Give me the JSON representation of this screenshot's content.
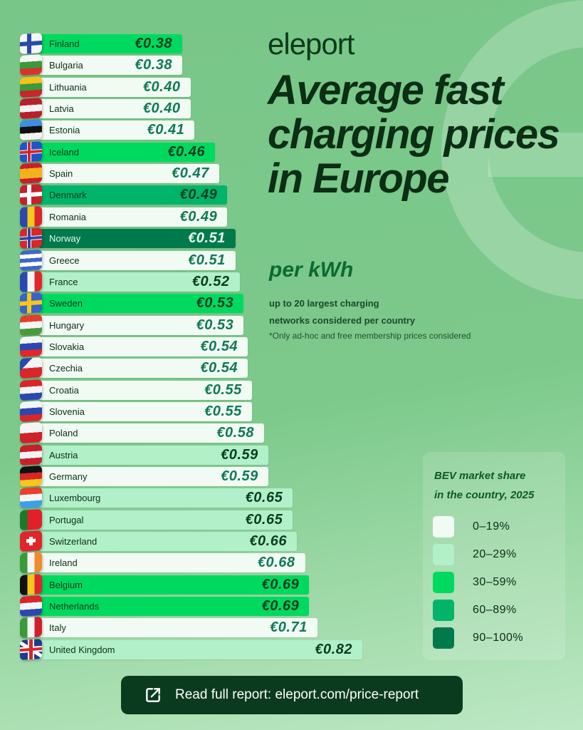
{
  "brand": {
    "logo": "eleport"
  },
  "header": {
    "title": "Average fast charging prices in Europe",
    "unit": "per kWh",
    "subtitle_line1": "up to 20 largest charging",
    "subtitle_line2": "networks considered per country",
    "note": "*Only ad-hoc and free membership prices considered"
  },
  "legend": {
    "title_line1": "BEV market share",
    "title_line2": "in the country, 2025",
    "items": [
      {
        "label": "0–19%",
        "color": "#f1fbf3"
      },
      {
        "label": "20–29%",
        "color": "#b1f0c9"
      },
      {
        "label": "30–59%",
        "color": "#00d95f"
      },
      {
        "label": "60–89%",
        "color": "#00b56a"
      },
      {
        "label": "90–100%",
        "color": "#007a4d"
      }
    ]
  },
  "cta": {
    "label": "Read full report: eleport.com/price-report",
    "icon": "external-link-icon"
  },
  "chart_data": {
    "type": "bar",
    "orientation": "horizontal",
    "currency": "€",
    "unit": "per kWh",
    "categories": [
      "Finland",
      "Bulgaria",
      "Lithuania",
      "Latvia",
      "Estonia",
      "Iceland",
      "Spain",
      "Denmark",
      "Romania",
      "Norway",
      "Greece",
      "France",
      "Sweden",
      "Hungary",
      "Slovakia",
      "Czechia",
      "Croatia",
      "Slovenia",
      "Poland",
      "Austria",
      "Germany",
      "Luxembourg",
      "Portugal",
      "Switzerland",
      "Ireland",
      "Belgium",
      "Netherlands",
      "Italy",
      "United Kingdom"
    ],
    "values": [
      0.38,
      0.38,
      0.4,
      0.4,
      0.41,
      0.46,
      0.47,
      0.49,
      0.49,
      0.51,
      0.51,
      0.52,
      0.53,
      0.53,
      0.54,
      0.54,
      0.55,
      0.55,
      0.58,
      0.59,
      0.59,
      0.65,
      0.65,
      0.66,
      0.68,
      0.69,
      0.69,
      0.71,
      0.82
    ],
    "labels": [
      "€0.38",
      "€0.38",
      "€0.40",
      "€0.40",
      "€0.41",
      "€0.46",
      "€0.47",
      "€0.49",
      "€0.49",
      "€0.51",
      "€0.51",
      "€0.52",
      "€0.53",
      "€0.53",
      "€0.54",
      "€0.54",
      "€0.55",
      "€0.55",
      "€0.58",
      "€0.59",
      "€0.59",
      "€0.65",
      "€0.65",
      "€0.66",
      "€0.68",
      "€0.69",
      "€0.69",
      "€0.71",
      "€0.82"
    ],
    "bev_share_band": [
      "30–59%",
      "0–19%",
      "0–19%",
      "0–19%",
      "0–19%",
      "30–59%",
      "0–19%",
      "60–89%",
      "0–19%",
      "90–100%",
      "0–19%",
      "20–29%",
      "30–59%",
      "0–19%",
      "0–19%",
      "0–19%",
      "0–19%",
      "0–19%",
      "0–19%",
      "20–29%",
      "0–19%",
      "20–29%",
      "20–29%",
      "20–29%",
      "0–19%",
      "30–59%",
      "30–59%",
      "0–19%",
      "20–29%"
    ]
  }
}
